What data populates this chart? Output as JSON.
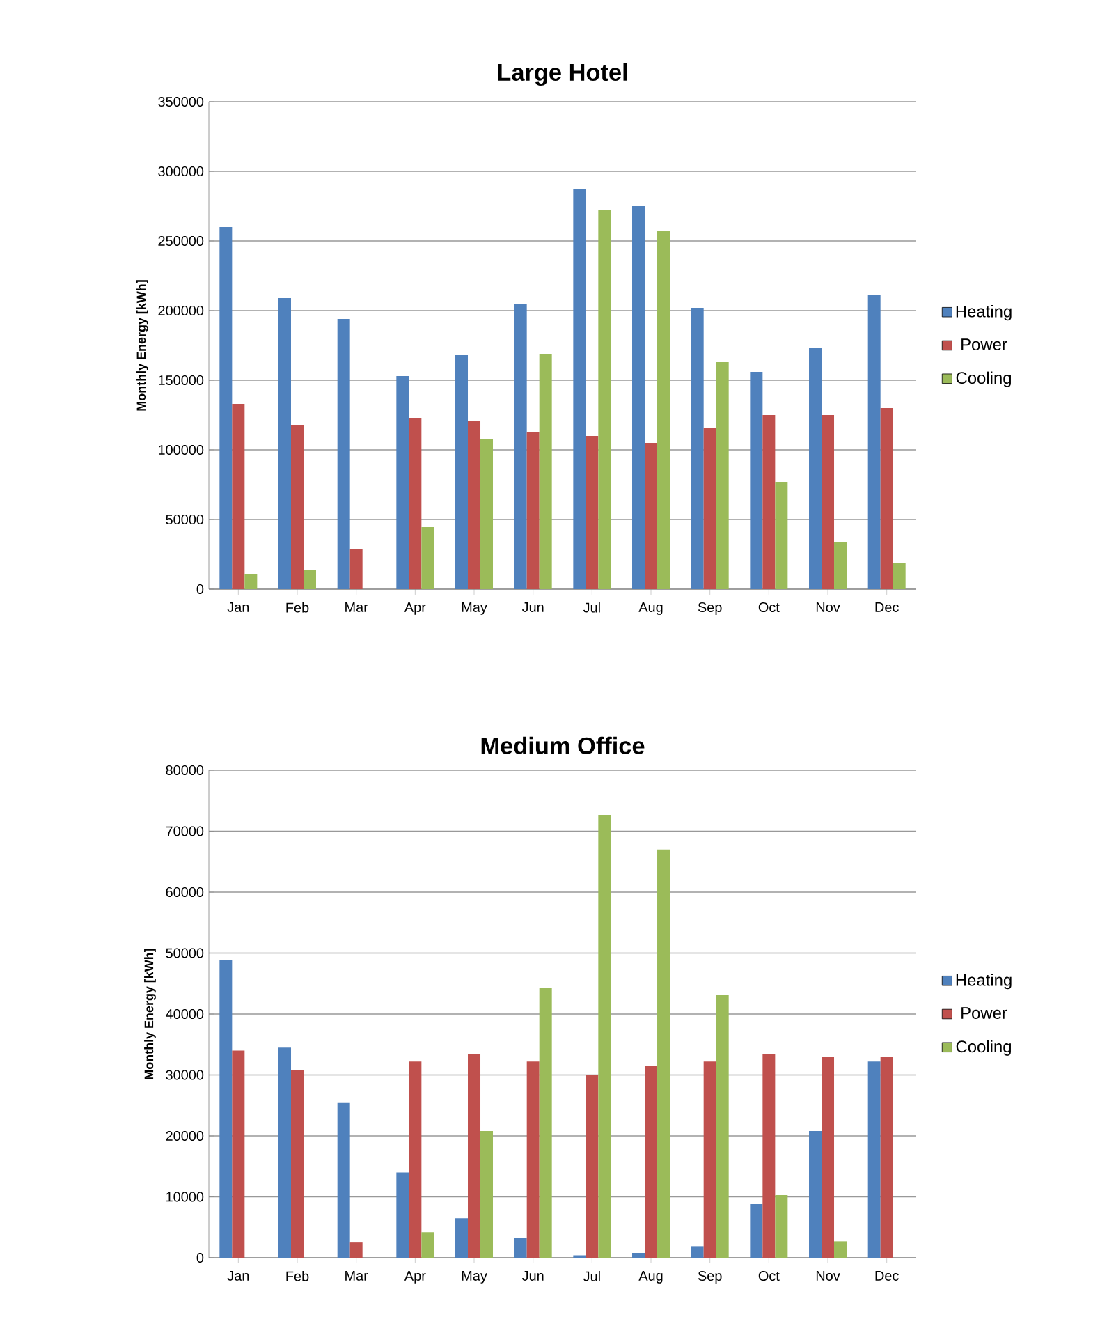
{
  "chart_data": [
    {
      "type": "bar",
      "title": "Large Hotel",
      "ylabel": "Monthly Energy [kWh]",
      "categories": [
        "Jan",
        "Feb",
        "Mar",
        "Apr",
        "May",
        "Jun",
        "Jul",
        "Aug",
        "Sep",
        "Oct",
        "Nov",
        "Dec"
      ],
      "series": [
        {
          "name": "Heating",
          "color": "#4f81bd",
          "values": [
            260000,
            209000,
            194000,
            153000,
            168000,
            205000,
            287000,
            275000,
            202000,
            156000,
            173000,
            211000
          ]
        },
        {
          "name": "Power",
          "color": "#c0504d",
          "values": [
            133000,
            118000,
            29000,
            123000,
            121000,
            113000,
            110000,
            105000,
            116000,
            125000,
            125000,
            130000
          ]
        },
        {
          "name": "Cooling",
          "color": "#9bbb59",
          "values": [
            11000,
            14000,
            null,
            45000,
            108000,
            169000,
            272000,
            257000,
            163000,
            77000,
            34000,
            19000
          ]
        }
      ],
      "ylim": [
        0,
        350000
      ],
      "yticks": [
        0,
        50000,
        100000,
        150000,
        200000,
        250000,
        300000,
        350000
      ],
      "grid": "y",
      "legend": "right"
    },
    {
      "type": "bar",
      "title": "Medium Office",
      "ylabel": "Monthly Energy [kWh]",
      "categories": [
        "Jan",
        "Feb",
        "Mar",
        "Apr",
        "May",
        "Jun",
        "Jul",
        "Aug",
        "Sep",
        "Oct",
        "Nov",
        "Dec"
      ],
      "series": [
        {
          "name": "Heating",
          "color": "#4f81bd",
          "values": [
            48800,
            34500,
            25400,
            14000,
            6500,
            3200,
            400,
            800,
            1900,
            8800,
            20800,
            32200
          ]
        },
        {
          "name": "Power",
          "color": "#c0504d",
          "values": [
            34000,
            30800,
            2500,
            32200,
            33400,
            32200,
            30000,
            31500,
            32200,
            33400,
            33000,
            33000
          ]
        },
        {
          "name": "Cooling",
          "color": "#9bbb59",
          "values": [
            null,
            null,
            null,
            4200,
            20800,
            44300,
            72700,
            67000,
            43200,
            10300,
            2700,
            null
          ]
        }
      ],
      "ylim": [
        0,
        80000
      ],
      "yticks": [
        0,
        10000,
        20000,
        30000,
        40000,
        50000,
        60000,
        70000,
        80000
      ],
      "grid": "y",
      "legend": "right"
    }
  ]
}
